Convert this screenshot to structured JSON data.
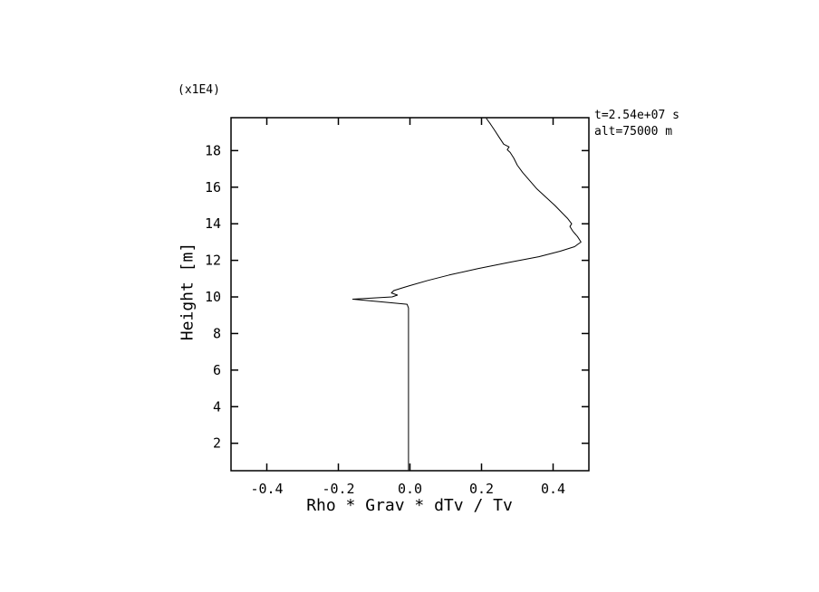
{
  "chart_data": {
    "type": "line",
    "title": "",
    "xlabel": "Rho * Grav * dTv / Tv",
    "ylabel": "Height [m]",
    "y_axis_multiplier": "(x1E4)",
    "annotations": [
      "t=2.54e+07 s",
      "alt=75000 m"
    ],
    "xlim": [
      -0.5,
      0.5
    ],
    "ylim": [
      0.5,
      19.8
    ],
    "grid": false,
    "legend": null,
    "line_color": "#000000",
    "background": "#ffffff",
    "xticks": [
      {
        "v": -0.4,
        "label": "-0.4"
      },
      {
        "v": -0.2,
        "label": "-0.2"
      },
      {
        "v": 0.0,
        "label": "0.0"
      },
      {
        "v": 0.2,
        "label": "0.2"
      },
      {
        "v": 0.4,
        "label": "0.4"
      }
    ],
    "yticks": [
      {
        "v": 2,
        "label": "2"
      },
      {
        "v": 4,
        "label": "4"
      },
      {
        "v": 6,
        "label": "6"
      },
      {
        "v": 8,
        "label": "8"
      },
      {
        "v": 10,
        "label": "10"
      },
      {
        "v": 12,
        "label": "12"
      },
      {
        "v": 14,
        "label": "14"
      },
      {
        "v": 16,
        "label": "16"
      },
      {
        "v": 18,
        "label": "18"
      }
    ],
    "series": [
      {
        "name": "buoyancy-profile",
        "points": [
          [
            -0.004,
            0.55
          ],
          [
            -0.004,
            9.4
          ],
          [
            -0.008,
            9.6
          ],
          [
            -0.16,
            9.88
          ],
          [
            -0.05,
            10.0
          ],
          [
            -0.035,
            10.1
          ],
          [
            -0.052,
            10.22
          ],
          [
            -0.045,
            10.35
          ],
          [
            -0.02,
            10.5
          ],
          [
            0.0,
            10.62
          ],
          [
            0.05,
            10.9
          ],
          [
            0.11,
            11.2
          ],
          [
            0.19,
            11.55
          ],
          [
            0.28,
            11.9
          ],
          [
            0.36,
            12.2
          ],
          [
            0.42,
            12.5
          ],
          [
            0.46,
            12.75
          ],
          [
            0.478,
            13.0
          ],
          [
            0.468,
            13.3
          ],
          [
            0.455,
            13.6
          ],
          [
            0.447,
            13.85
          ],
          [
            0.452,
            14.0
          ],
          [
            0.44,
            14.3
          ],
          [
            0.425,
            14.6
          ],
          [
            0.405,
            15.0
          ],
          [
            0.38,
            15.45
          ],
          [
            0.355,
            15.9
          ],
          [
            0.335,
            16.35
          ],
          [
            0.315,
            16.8
          ],
          [
            0.3,
            17.2
          ],
          [
            0.29,
            17.6
          ],
          [
            0.28,
            17.9
          ],
          [
            0.272,
            18.05
          ],
          [
            0.277,
            18.2
          ],
          [
            0.262,
            18.35
          ],
          [
            0.25,
            18.7
          ],
          [
            0.237,
            19.1
          ],
          [
            0.225,
            19.45
          ],
          [
            0.214,
            19.75
          ]
        ]
      }
    ]
  }
}
